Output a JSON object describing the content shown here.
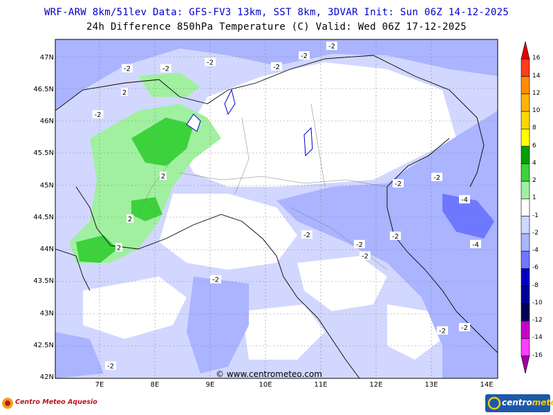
{
  "header": {
    "line1": "WRF-ARW 8km/51lev  Data: GFS-FV3 13km, SST 8km, 3DVAR  Init: Sun 06Z 14-12-2025",
    "line2": "24h Difference 850hPa Temperature (C)  Valid: Wed 06Z 17-12-2025"
  },
  "axes": {
    "lat_labels": [
      "47N",
      "46.5N",
      "46N",
      "45.5N",
      "45N",
      "44.5N",
      "44N",
      "43.5N",
      "43N",
      "42.5N",
      "42N"
    ],
    "lon_labels": [
      "7E",
      "8E",
      "9E",
      "10E",
      "11E",
      "12E",
      "13E",
      "14E"
    ],
    "lat_range": [
      42,
      47.3
    ],
    "lon_range": [
      6.2,
      14.2
    ]
  },
  "colorbar": {
    "labels": [
      "16",
      "14",
      "12",
      "10",
      "8",
      "6",
      "4",
      "2",
      "1",
      "-1",
      "-2",
      "-4",
      "-6",
      "-8",
      "-10",
      "-12",
      "-14",
      "-16"
    ],
    "colors": [
      "#e00000",
      "#ff3c1e",
      "#ff8c00",
      "#ffb400",
      "#ffd700",
      "#ffff00",
      "#00a000",
      "#3cd23c",
      "#a0f0a0",
      "#ffffff",
      "#d2d7ff",
      "#aab4ff",
      "#6e78ff",
      "#0000c8",
      "#000096",
      "#00005a",
      "#c800c8",
      "#ff3cff",
      "#a000a0"
    ]
  },
  "contour_labels": [
    {
      "text": "-2",
      "lon": 7.5,
      "lat": 46.85
    },
    {
      "text": "-2",
      "lon": 8.2,
      "lat": 46.85
    },
    {
      "text": "-2",
      "lon": 9.0,
      "lat": 46.95
    },
    {
      "text": "-2",
      "lon": 10.2,
      "lat": 46.88
    },
    {
      "text": "-2",
      "lon": 10.7,
      "lat": 47.05
    },
    {
      "text": "-2",
      "lon": 11.2,
      "lat": 47.2
    },
    {
      "text": "-2",
      "lon": 6.97,
      "lat": 46.13
    },
    {
      "text": "2",
      "lon": 7.45,
      "lat": 46.48
    },
    {
      "text": "2",
      "lon": 8.15,
      "lat": 45.17
    },
    {
      "text": "2",
      "lon": 7.55,
      "lat": 44.5
    },
    {
      "text": "2",
      "lon": 7.35,
      "lat": 44.05
    },
    {
      "text": "-2",
      "lon": 12.4,
      "lat": 45.05
    },
    {
      "text": "-2",
      "lon": 13.1,
      "lat": 45.15
    },
    {
      "text": "-4",
      "lon": 13.6,
      "lat": 44.8
    },
    {
      "text": "-2",
      "lon": 12.35,
      "lat": 44.23
    },
    {
      "text": "-4",
      "lon": 13.8,
      "lat": 44.1
    },
    {
      "text": "-2",
      "lon": 10.75,
      "lat": 44.25
    },
    {
      "text": "-2",
      "lon": 11.8,
      "lat": 43.92
    },
    {
      "text": "-2",
      "lon": 11.7,
      "lat": 44.1
    },
    {
      "text": "-2",
      "lon": 9.1,
      "lat": 43.55
    },
    {
      "text": "-2",
      "lon": 13.2,
      "lat": 42.75
    },
    {
      "text": "-2",
      "lon": 13.6,
      "lat": 42.8
    },
    {
      "text": "-2",
      "lon": 7.2,
      "lat": 42.2
    }
  ],
  "credit": "©  www.centrometeo.com",
  "logos": {
    "left": "Centro Meteo Aquesio",
    "right_a": "centro",
    "right_b": "meteo"
  }
}
